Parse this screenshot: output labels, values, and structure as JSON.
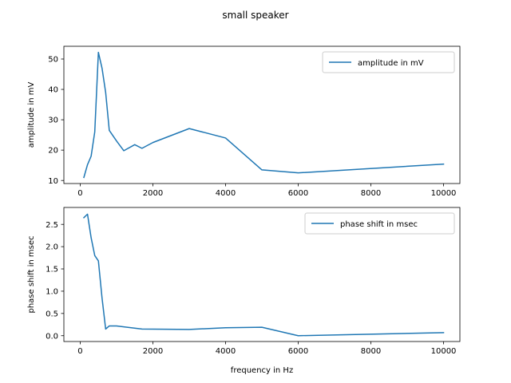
{
  "figure": {
    "title": "small speaker"
  },
  "chart_data": [
    {
      "type": "line",
      "title": "",
      "xlabel": "",
      "ylabel": "amplitude in mV",
      "xlim": [
        -450,
        10450
      ],
      "ylim": [
        9.0,
        54.2
      ],
      "xticks": [
        0,
        2000,
        4000,
        6000,
        8000,
        10000
      ],
      "yticks": [
        10,
        20,
        30,
        40,
        50
      ],
      "legend": "top-right",
      "grid": false,
      "series": [
        {
          "name": "amplitude in mV",
          "color": "#1f77b4",
          "x": [
            100,
            200,
            300,
            400,
            500,
            600,
            700,
            800,
            1000,
            1200,
            1500,
            1700,
            2000,
            3000,
            4000,
            5000,
            6000,
            10000
          ],
          "y": [
            11.0,
            15.2,
            18.0,
            26.0,
            52.2,
            47.0,
            39.0,
            26.5,
            23.0,
            19.8,
            21.8,
            20.6,
            22.5,
            27.1,
            24.0,
            13.5,
            12.5,
            15.4
          ]
        }
      ]
    },
    {
      "type": "line",
      "title": "",
      "xlabel": "frequency in Hz",
      "ylabel": "phase shift in msec",
      "xlim": [
        -450,
        10450
      ],
      "ylim": [
        -0.13,
        2.88
      ],
      "xticks": [
        0,
        2000,
        4000,
        6000,
        8000,
        10000
      ],
      "yticks": [
        0.0,
        0.5,
        1.0,
        1.5,
        2.0,
        2.5
      ],
      "legend": "top-right",
      "grid": false,
      "series": [
        {
          "name": "phase shift in msec",
          "color": "#1f77b4",
          "x": [
            100,
            200,
            300,
            400,
            500,
            600,
            700,
            800,
            1000,
            1200,
            1700,
            3000,
            4000,
            5000,
            6000,
            10000
          ],
          "y": [
            2.65,
            2.73,
            2.2,
            1.8,
            1.68,
            0.85,
            0.15,
            0.22,
            0.22,
            0.2,
            0.15,
            0.14,
            0.18,
            0.19,
            0.0,
            0.07
          ]
        }
      ]
    }
  ]
}
